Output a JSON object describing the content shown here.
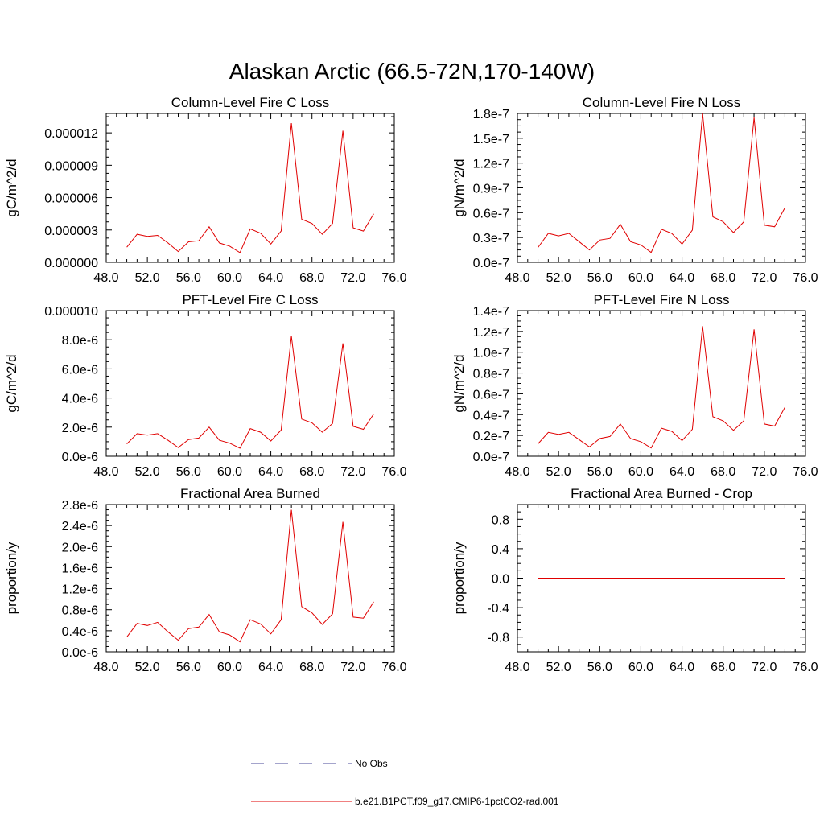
{
  "title": "Alaskan Arctic (66.5-72N,170-140W)",
  "legend": [
    {
      "label": "No Obs",
      "color": "#4a4a9a",
      "style": "dashed"
    },
    {
      "label": "b.e21.B1PCT.f09_g17.CMIP6-1pctCO2-rad.001",
      "color": "#e00000",
      "style": "solid"
    }
  ],
  "chart_data": [
    {
      "type": "line",
      "title": "Column-Level Fire C Loss",
      "ylabel": "gC/m^2/d",
      "xlim": [
        48,
        76
      ],
      "ylim": [
        0,
        1.38e-05
      ],
      "xticks": [
        48,
        52,
        56,
        60,
        64,
        68,
        72,
        76
      ],
      "xtick_labels": [
        "48.0",
        "52.0",
        "56.0",
        "60.0",
        "64.0",
        "68.0",
        "72.0",
        "76.0"
      ],
      "yticks": [
        0,
        3e-06,
        6e-06,
        9e-06,
        1.2e-05
      ],
      "ytick_labels": [
        "0.000000",
        "0.000003",
        "0.000006",
        "0.000009",
        "0.000012"
      ],
      "series": [
        {
          "color": "#e00000",
          "x": [
            50,
            51,
            52,
            53,
            54,
            55,
            56,
            57,
            58,
            59,
            60,
            61,
            62,
            63,
            64,
            65,
            66,
            67,
            68,
            69,
            70,
            71,
            72,
            73,
            74
          ],
          "y": [
            1.4e-06,
            2.6e-06,
            2.4e-06,
            2.5e-06,
            1.8e-06,
            1e-06,
            1.9e-06,
            2e-06,
            3.3e-06,
            1.8e-06,
            1.5e-06,
            9e-07,
            3.1e-06,
            2.7e-06,
            1.7e-06,
            2.9e-06,
            1.29e-05,
            4e-06,
            3.6e-06,
            2.6e-06,
            3.6e-06,
            1.22e-05,
            3.2e-06,
            2.9e-06,
            4.5e-06
          ]
        }
      ]
    },
    {
      "type": "line",
      "title": "Column-Level Fire N Loss",
      "ylabel": "gN/m^2/d",
      "xlim": [
        48,
        76
      ],
      "ylim": [
        0,
        1.8e-07
      ],
      "xticks": [
        48,
        52,
        56,
        60,
        64,
        68,
        72,
        76
      ],
      "xtick_labels": [
        "48.0",
        "52.0",
        "56.0",
        "60.0",
        "64.0",
        "68.0",
        "72.0",
        "76.0"
      ],
      "yticks": [
        0,
        3e-08,
        6e-08,
        9e-08,
        1.2e-07,
        1.5e-07,
        1.8e-07
      ],
      "ytick_labels": [
        "0.0e-7",
        "0.3e-7",
        "0.6e-7",
        "0.9e-7",
        "1.2e-7",
        "1.5e-7",
        "1.8e-7"
      ],
      "series": [
        {
          "color": "#e00000",
          "x": [
            50,
            51,
            52,
            53,
            54,
            55,
            56,
            57,
            58,
            59,
            60,
            61,
            62,
            63,
            64,
            65,
            66,
            67,
            68,
            69,
            70,
            71,
            72,
            73,
            74
          ],
          "y": [
            1.8e-08,
            3.5e-08,
            3.2e-08,
            3.5e-08,
            2.5e-08,
            1.5e-08,
            2.7e-08,
            2.9e-08,
            4.6e-08,
            2.5e-08,
            2.1e-08,
            1.2e-08,
            4e-08,
            3.5e-08,
            2.2e-08,
            3.9e-08,
            1.8e-07,
            5.5e-08,
            4.9e-08,
            3.6e-08,
            4.9e-08,
            1.75e-07,
            4.5e-08,
            4.3e-08,
            6.6e-08
          ]
        }
      ]
    },
    {
      "type": "line",
      "title": "PFT-Level Fire C Loss",
      "ylabel": "gC/m^2/d",
      "xlim": [
        48,
        76
      ],
      "ylim": [
        0,
        1e-05
      ],
      "xticks": [
        48,
        52,
        56,
        60,
        64,
        68,
        72,
        76
      ],
      "xtick_labels": [
        "48.0",
        "52.0",
        "56.0",
        "60.0",
        "64.0",
        "68.0",
        "72.0",
        "76.0"
      ],
      "yticks": [
        0,
        2e-06,
        4e-06,
        6e-06,
        8e-06,
        1e-05
      ],
      "ytick_labels": [
        "0.0e-6",
        "2.0e-6",
        "4.0e-6",
        "6.0e-6",
        "8.0e-6",
        "0.000010"
      ],
      "series": [
        {
          "color": "#e00000",
          "x": [
            50,
            51,
            52,
            53,
            54,
            55,
            56,
            57,
            58,
            59,
            60,
            61,
            62,
            63,
            64,
            65,
            66,
            67,
            68,
            69,
            70,
            71,
            72,
            73,
            74
          ],
          "y": [
            8.5e-07,
            1.55e-06,
            1.45e-06,
            1.55e-06,
            1.1e-06,
            6e-07,
            1.15e-06,
            1.25e-06,
            2e-06,
            1.1e-06,
            9e-07,
            5.5e-07,
            1.9e-06,
            1.65e-06,
            1.05e-06,
            1.8e-06,
            8.25e-06,
            2.55e-06,
            2.3e-06,
            1.65e-06,
            2.25e-06,
            7.75e-06,
            2.05e-06,
            1.85e-06,
            2.9e-06
          ]
        }
      ]
    },
    {
      "type": "line",
      "title": "PFT-Level Fire N Loss",
      "ylabel": "gN/m^2/d",
      "xlim": [
        48,
        76
      ],
      "ylim": [
        0,
        1.4e-07
      ],
      "xticks": [
        48,
        52,
        56,
        60,
        64,
        68,
        72,
        76
      ],
      "xtick_labels": [
        "48.0",
        "52.0",
        "56.0",
        "60.0",
        "64.0",
        "68.0",
        "72.0",
        "76.0"
      ],
      "yticks": [
        0,
        2e-08,
        4e-08,
        6e-08,
        8e-08,
        1e-07,
        1.2e-07,
        1.4e-07
      ],
      "ytick_labels": [
        "0.0e-7",
        "0.2e-7",
        "0.4e-7",
        "0.6e-7",
        "0.8e-7",
        "1.0e-7",
        "1.2e-7",
        "1.4e-7"
      ],
      "series": [
        {
          "color": "#e00000",
          "x": [
            50,
            51,
            52,
            53,
            54,
            55,
            56,
            57,
            58,
            59,
            60,
            61,
            62,
            63,
            64,
            65,
            66,
            67,
            68,
            69,
            70,
            71,
            72,
            73,
            74
          ],
          "y": [
            1.2e-08,
            2.3e-08,
            2.1e-08,
            2.3e-08,
            1.6e-08,
            9e-09,
            1.7e-08,
            1.9e-08,
            3.1e-08,
            1.7e-08,
            1.4e-08,
            8e-09,
            2.7e-08,
            2.4e-08,
            1.5e-08,
            2.6e-08,
            1.25e-07,
            3.8e-08,
            3.4e-08,
            2.5e-08,
            3.4e-08,
            1.22e-07,
            3.1e-08,
            2.9e-08,
            4.7e-08
          ]
        }
      ]
    },
    {
      "type": "line",
      "title": "Fractional Area Burned",
      "ylabel": "proportion/y",
      "xlim": [
        48,
        76
      ],
      "ylim": [
        0,
        2.8e-06
      ],
      "xticks": [
        48,
        52,
        56,
        60,
        64,
        68,
        72,
        76
      ],
      "xtick_labels": [
        "48.0",
        "52.0",
        "56.0",
        "60.0",
        "64.0",
        "68.0",
        "72.0",
        "76.0"
      ],
      "yticks": [
        0,
        4e-07,
        8e-07,
        1.2e-06,
        1.6e-06,
        2e-06,
        2.4e-06,
        2.8e-06
      ],
      "ytick_labels": [
        "0.0e-6",
        "0.4e-6",
        "0.8e-6",
        "1.2e-6",
        "1.6e-6",
        "2.0e-6",
        "2.4e-6",
        "2.8e-6"
      ],
      "series": [
        {
          "color": "#e00000",
          "x": [
            50,
            51,
            52,
            53,
            54,
            55,
            56,
            57,
            58,
            59,
            60,
            61,
            62,
            63,
            64,
            65,
            66,
            67,
            68,
            69,
            70,
            71,
            72,
            73,
            74
          ],
          "y": [
            2.8e-07,
            5.4e-07,
            5e-07,
            5.6e-07,
            3.8e-07,
            2.2e-07,
            4.4e-07,
            4.7e-07,
            7.1e-07,
            3.8e-07,
            3.2e-07,
            1.9e-07,
            6.1e-07,
            5.3e-07,
            3.4e-07,
            6.1e-07,
            2.7e-06,
            8.6e-07,
            7.4e-07,
            5.2e-07,
            7.2e-07,
            2.47e-06,
            6.6e-07,
            6.4e-07,
            9.5e-07
          ]
        }
      ]
    },
    {
      "type": "line",
      "title": "Fractional Area Burned - Crop",
      "ylabel": "proportion/y",
      "xlim": [
        48,
        76
      ],
      "ylim": [
        -1,
        1
      ],
      "xticks": [
        48,
        52,
        56,
        60,
        64,
        68,
        72,
        76
      ],
      "xtick_labels": [
        "48.0",
        "52.0",
        "56.0",
        "60.0",
        "64.0",
        "68.0",
        "72.0",
        "76.0"
      ],
      "yticks": [
        -0.8,
        -0.4,
        0,
        0.4,
        0.8
      ],
      "ytick_labels": [
        "-0.8",
        "-0.4",
        "0.0",
        "0.4",
        "0.8"
      ],
      "series": [
        {
          "color": "#e00000",
          "x": [
            50,
            51,
            52,
            53,
            54,
            55,
            56,
            57,
            58,
            59,
            60,
            61,
            62,
            63,
            64,
            65,
            66,
            67,
            68,
            69,
            70,
            71,
            72,
            73,
            74
          ],
          "y": [
            0,
            0,
            0,
            0,
            0,
            0,
            0,
            0,
            0,
            0,
            0,
            0,
            0,
            0,
            0,
            0,
            0,
            0,
            0,
            0,
            0,
            0,
            0,
            0,
            0
          ]
        }
      ]
    }
  ]
}
